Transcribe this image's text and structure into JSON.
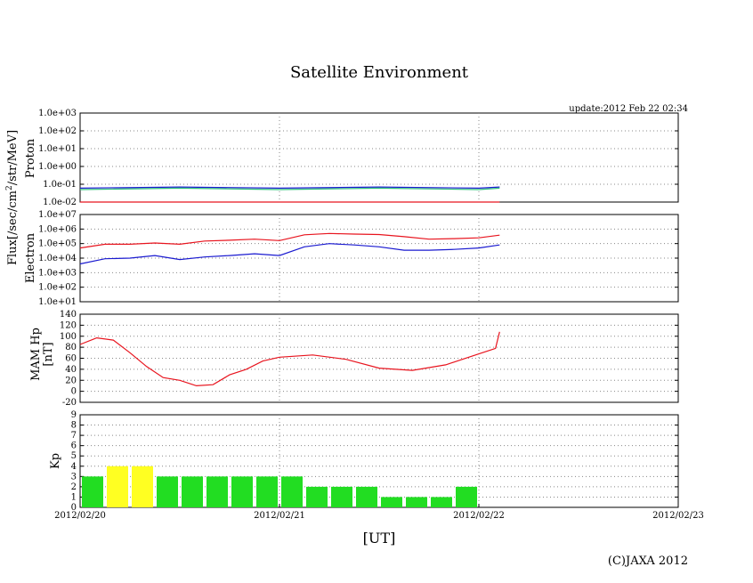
{
  "title": "Satellite Environment",
  "update": "update:2012 Feb 22 02:34",
  "copyright": "(C)JAXA 2012",
  "xlabel": "[UT]",
  "x_ticks": [
    "2012/02/20",
    "2012/02/21",
    "2012/02/22",
    "2012/02/23"
  ],
  "flux_label": "Flux[/sec/cm",
  "flux_label_sup": "2",
  "flux_label_tail": "/str/MeV]",
  "colors": {
    "red": "#e8141e",
    "blue": "#1a1ad0",
    "green": "#2ec27a",
    "kp_green": "#22dd22",
    "kp_yellow": "#ffff22"
  },
  "chart_data": [
    {
      "type": "line",
      "panel": "proton",
      "ylabel": "Proton",
      "yscale": "log",
      "ylim": [
        0.01,
        1000
      ],
      "y_ticks": [
        "1.0e-02",
        "1.0e-01",
        "1.0e+00",
        "1.0e+01",
        "1.0e+02",
        "1.0e+03"
      ],
      "xlim": [
        "2012/02/20",
        "2012/02/23"
      ],
      "grid": true,
      "series": [
        {
          "color": "#1a1ad0",
          "x": [
            "2012/02/20 00:00",
            "2012/02/20 12:00",
            "2012/02/21 00:00",
            "2012/02/21 12:00",
            "2012/02/22 00:00",
            "2012/02/22 02:30"
          ],
          "y": [
            0.06,
            0.07,
            0.06,
            0.07,
            0.06,
            0.07
          ]
        },
        {
          "color": "#2ec27a",
          "x": [
            "2012/02/20 00:00",
            "2012/02/20 12:00",
            "2012/02/21 00:00",
            "2012/02/21 12:00",
            "2012/02/22 00:00",
            "2012/02/22 02:30"
          ],
          "y": [
            0.05,
            0.06,
            0.05,
            0.06,
            0.05,
            0.06
          ]
        },
        {
          "color": "#e8141e",
          "x": [
            "2012/02/20 00:00",
            "2012/02/22 02:30"
          ],
          "y": [
            0.01,
            0.01
          ]
        }
      ]
    },
    {
      "type": "line",
      "panel": "electron",
      "ylabel": "Electron",
      "yscale": "log",
      "ylim": [
        10,
        10000000
      ],
      "y_ticks": [
        "1.0e+01",
        "1.0e+02",
        "1.0e+03",
        "1.0e+04",
        "1.0e+05",
        "1.0e+06",
        "1.0e+07"
      ],
      "xlim": [
        "2012/02/20",
        "2012/02/23"
      ],
      "grid": true,
      "series": [
        {
          "color": "#e8141e",
          "x": [
            "2012/02/20 00:00",
            "2012/02/20 03:00",
            "2012/02/20 06:00",
            "2012/02/20 09:00",
            "2012/02/20 12:00",
            "2012/02/20 15:00",
            "2012/02/20 18:00",
            "2012/02/20 21:00",
            "2012/02/21 00:00",
            "2012/02/21 03:00",
            "2012/02/21 06:00",
            "2012/02/21 09:00",
            "2012/02/21 12:00",
            "2012/02/21 15:00",
            "2012/02/21 18:00",
            "2012/02/21 21:00",
            "2012/02/22 00:00",
            "2012/02/22 02:30"
          ],
          "y": [
            50000,
            90000,
            90000,
            110000,
            90000,
            150000,
            170000,
            200000,
            160000,
            400000,
            500000,
            450000,
            420000,
            300000,
            200000,
            220000,
            250000,
            380000
          ]
        },
        {
          "color": "#1a1ad0",
          "x": [
            "2012/02/20 00:00",
            "2012/02/20 03:00",
            "2012/02/20 06:00",
            "2012/02/20 09:00",
            "2012/02/20 12:00",
            "2012/02/20 15:00",
            "2012/02/20 18:00",
            "2012/02/20 21:00",
            "2012/02/21 00:00",
            "2012/02/21 03:00",
            "2012/02/21 06:00",
            "2012/02/21 09:00",
            "2012/02/21 12:00",
            "2012/02/21 15:00",
            "2012/02/21 18:00",
            "2012/02/21 21:00",
            "2012/02/22 00:00",
            "2012/02/22 02:30"
          ],
          "y": [
            4000,
            9000,
            10000,
            15000,
            8000,
            12000,
            15000,
            20000,
            15000,
            60000,
            100000,
            80000,
            60000,
            35000,
            35000,
            40000,
            50000,
            80000
          ]
        }
      ]
    },
    {
      "type": "line",
      "panel": "mam_hp",
      "ylabel": "MAM Hp\n[nT]",
      "ylim": [
        -20,
        140
      ],
      "y_ticks": [
        "-20",
        "0",
        "20",
        "40",
        "60",
        "80",
        "100",
        "120",
        "140"
      ],
      "xlim": [
        "2012/02/20",
        "2012/02/23"
      ],
      "grid": true,
      "series": [
        {
          "color": "#e8141e",
          "x": [
            "2012/02/20 00:00",
            "2012/02/20 02:00",
            "2012/02/20 04:00",
            "2012/02/20 06:00",
            "2012/02/20 08:00",
            "2012/02/20 10:00",
            "2012/02/20 12:00",
            "2012/02/20 14:00",
            "2012/02/20 16:00",
            "2012/02/20 18:00",
            "2012/02/20 20:00",
            "2012/02/20 22:00",
            "2012/02/21 00:00",
            "2012/02/21 04:00",
            "2012/02/21 08:00",
            "2012/02/21 12:00",
            "2012/02/21 16:00",
            "2012/02/21 20:00",
            "2012/02/22 00:00",
            "2012/02/22 02:00",
            "2012/02/22 02:30"
          ],
          "y": [
            85,
            97,
            93,
            70,
            45,
            25,
            20,
            10,
            12,
            30,
            40,
            55,
            62,
            66,
            58,
            42,
            38,
            48,
            68,
            78,
            108
          ]
        }
      ]
    },
    {
      "type": "bar",
      "panel": "kp",
      "ylabel": "Kp",
      "ylim": [
        0,
        9
      ],
      "y_ticks": [
        "0",
        "1",
        "2",
        "3",
        "4",
        "5",
        "6",
        "7",
        "8",
        "9"
      ],
      "xlim": [
        "2012/02/20",
        "2012/02/23"
      ],
      "grid": true,
      "interval_hours": 3,
      "categories": [
        "2012/02/20 00-03",
        "2012/02/20 03-06",
        "2012/02/20 06-09",
        "2012/02/20 09-12",
        "2012/02/20 12-15",
        "2012/02/20 15-18",
        "2012/02/20 18-21",
        "2012/02/20 21-24",
        "2012/02/21 00-03",
        "2012/02/21 03-06",
        "2012/02/21 06-09",
        "2012/02/21 09-12",
        "2012/02/21 12-15",
        "2012/02/21 15-18",
        "2012/02/21 18-21",
        "2012/02/21 21-24"
      ],
      "values": [
        3,
        4,
        4,
        3,
        3,
        3,
        3,
        3,
        3,
        2,
        2,
        2,
        1,
        1,
        1,
        2
      ],
      "bar_colors": [
        "#22dd22",
        "#ffff22",
        "#ffff22",
        "#22dd22",
        "#22dd22",
        "#22dd22",
        "#22dd22",
        "#22dd22",
        "#22dd22",
        "#22dd22",
        "#22dd22",
        "#22dd22",
        "#22dd22",
        "#22dd22",
        "#22dd22",
        "#22dd22"
      ]
    }
  ]
}
